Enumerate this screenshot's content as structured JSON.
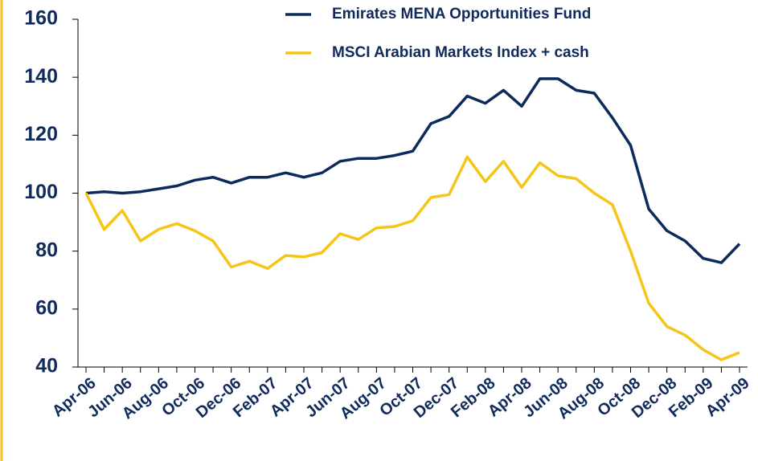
{
  "chart_data": {
    "type": "line",
    "categories": [
      "Apr-06",
      null,
      "Jun-06",
      null,
      "Aug-06",
      null,
      "Oct-06",
      null,
      "Dec-06",
      null,
      "Feb-07",
      null,
      "Apr-07",
      null,
      "Jun-07",
      null,
      "Aug-07",
      null,
      "Oct-07",
      null,
      "Dec-07",
      null,
      "Feb-08",
      null,
      "Apr-08",
      null,
      "Jun-08",
      null,
      "Aug-08",
      null,
      "Oct-08",
      null,
      "Dec-08",
      null,
      "Feb-09",
      null,
      "Apr-09"
    ],
    "series": [
      {
        "name": "Emirates MENA Opportunities Fund",
        "color": "#0d2a5c",
        "values": [
          100,
          100.5,
          100,
          100.5,
          101.5,
          102.5,
          104.5,
          105.5,
          103.5,
          105.5,
          105.5,
          107,
          105.5,
          107,
          111,
          112,
          112,
          113,
          114.5,
          124,
          126.5,
          133.5,
          131,
          135.5,
          130,
          139.5,
          139.5,
          135.5,
          134.5,
          126,
          116.5,
          94.5,
          87,
          83.5,
          77.5,
          76,
          82.5
        ]
      },
      {
        "name": "MSCI Arabian Markets Index + cash",
        "color": "#f5c518",
        "values": [
          100,
          87.5,
          94,
          83.5,
          87.5,
          89.5,
          87,
          83.5,
          74.5,
          76.5,
          74,
          78.5,
          78,
          79.5,
          86,
          84,
          88,
          88.5,
          90.5,
          98.5,
          99.5,
          112.5,
          104,
          111,
          102,
          110.5,
          106,
          105,
          100,
          96,
          80,
          62,
          54,
          51,
          46,
          42.5,
          45
        ]
      }
    ],
    "ylim": [
      40,
      160
    ],
    "yticks": [
      40,
      60,
      80,
      100,
      120,
      140,
      160
    ],
    "grid": false,
    "legend": "top"
  }
}
